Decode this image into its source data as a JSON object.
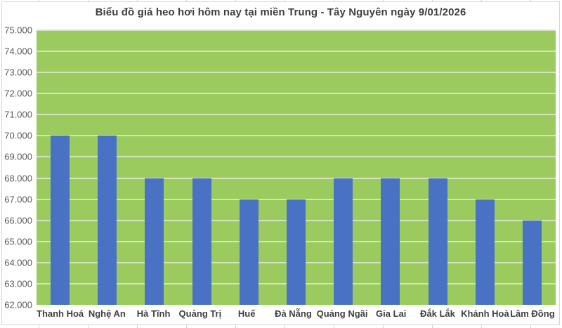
{
  "chart_data": {
    "type": "bar",
    "title": "Biểu đồ giá heo hơi hôm nay tại miền Trung - Tây Nguyên ngày 9/01/2026",
    "categories": [
      "Thanh Hoá",
      "Nghệ An",
      "Hà Tĩnh",
      "Quảng Trị",
      "Huế",
      "Đà Nẵng",
      "Quảng Ngãi",
      "Gia Lai",
      "Đắk Lắk",
      "Khánh Hoà",
      "Lâm Đồng"
    ],
    "values": [
      70000,
      70000,
      68000,
      68000,
      67000,
      67000,
      68000,
      68000,
      68000,
      67000,
      66000
    ],
    "xlabel": "",
    "ylabel": "",
    "ylim": [
      62000,
      75000
    ],
    "ytick_step": 1000,
    "ytick_labels": [
      "62.000",
      "63.000",
      "64.000",
      "65.000",
      "66.000",
      "67.000",
      "68.000",
      "69.000",
      "70.000",
      "71.000",
      "72.000",
      "73.000",
      "74.000",
      "75.000"
    ],
    "grid": true,
    "legend": false,
    "colors": {
      "bar": "#4a72c4",
      "plot_background": "#9bcb5e",
      "gridline": "#d4e4bd",
      "title_text": "#404040",
      "axis_text": "#595959",
      "category_text": "#404040",
      "chart_border": "#d6d6d6",
      "background": "#ffffff"
    }
  }
}
